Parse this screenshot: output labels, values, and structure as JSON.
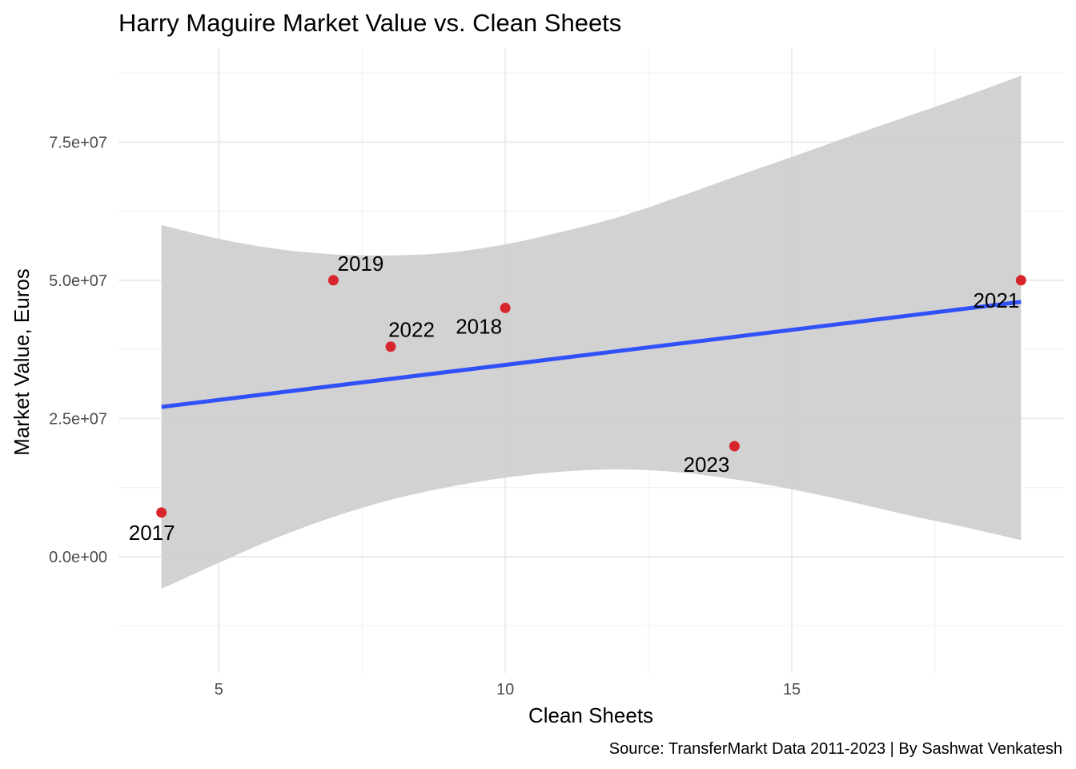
{
  "chart_data": {
    "type": "scatter",
    "title": "Harry Maguire Market Value vs. Clean Sheets",
    "xlabel": "Clean Sheets",
    "ylabel": "Market Value, Euros",
    "caption": "Source: TransferMarkt Data 2011-2023 | By Sashwat Venkatesh",
    "xlim": [
      3.25,
      19.75
    ],
    "ylim": [
      -21000000,
      92000000
    ],
    "x_ticks": [
      5,
      10,
      15
    ],
    "x_tick_labels": [
      "5",
      "10",
      "15"
    ],
    "y_ticks": [
      0,
      25000000,
      50000000,
      75000000
    ],
    "y_tick_labels": [
      "0.0e+00",
      "2.5e+07",
      "5.0e+07",
      "7.5e+07"
    ],
    "grid": true,
    "points": [
      {
        "label": "2017",
        "x": 4,
        "y": 8000000
      },
      {
        "label": "2019",
        "x": 7,
        "y": 50000000
      },
      {
        "label": "2022",
        "x": 8,
        "y": 38000000
      },
      {
        "label": "2018",
        "x": 10,
        "y": 45000000
      },
      {
        "label": "2023",
        "x": 14,
        "y": 20000000
      },
      {
        "label": "2021",
        "x": 19,
        "y": 50000000
      }
    ],
    "trend_line": {
      "method": "lm",
      "x": [
        4,
        19
      ],
      "y": [
        27100000,
        46100000
      ]
    },
    "confidence_band": {
      "x": [
        4,
        5,
        6,
        7,
        8,
        9,
        10,
        11,
        12,
        13,
        14,
        15,
        16,
        17,
        18,
        19
      ],
      "upper": [
        60000000,
        57500000,
        55700000,
        54700000,
        54500000,
        55000000,
        56500000,
        58800000,
        61500000,
        65000000,
        68700000,
        72300000,
        76000000,
        79600000,
        83200000,
        87000000
      ],
      "lower": [
        -5800000,
        -1100000,
        3400000,
        7200000,
        10300000,
        12600000,
        14300000,
        15400000,
        15800000,
        15300000,
        14000000,
        12200000,
        10000000,
        7600000,
        5400000,
        3000000
      ]
    },
    "colors": {
      "points": "#d7262b",
      "trend_line": "#3050f8",
      "band": "#d0d0d0"
    }
  }
}
